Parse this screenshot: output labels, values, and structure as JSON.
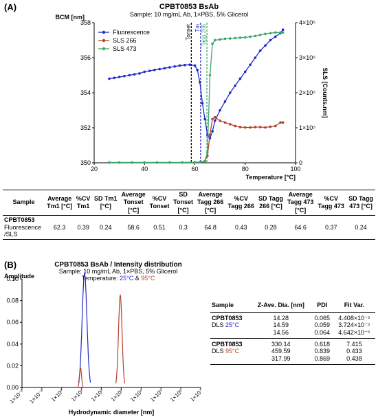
{
  "panels": {
    "a": "(A)",
    "b": "(B)"
  },
  "chart_data": [
    {
      "type": "line",
      "title": "CPBT0853 BsAb",
      "subtitle": "Sample: 10 mg/mL Ab, 1×PBS, 5% Glicerol",
      "xlabel": "Temperature [°C]",
      "ylabel_left": "BCM [nm]",
      "ylabel_right": "SLS [Counts.nm]",
      "xlim": [
        20,
        100
      ],
      "ylim_left": [
        350,
        358
      ],
      "ylim_right": [
        0,
        400000
      ],
      "x_ticks": [
        20,
        40,
        60,
        80,
        100
      ],
      "y_ticks_left": [
        350,
        352,
        354,
        356,
        358
      ],
      "y_ticks_right": [
        {
          "value": 0,
          "label": "0"
        },
        {
          "value": 100000,
          "label": "1×10⁵"
        },
        {
          "value": 200000,
          "label": "2×10⁵"
        },
        {
          "value": 300000,
          "label": "3×10⁵"
        },
        {
          "value": 400000,
          "label": "4×10⁵"
        }
      ],
      "legend_position": "top-left",
      "series": [
        {
          "name": "Fluorescence",
          "axis": "left",
          "color": "#1f28c8",
          "x": [
            26,
            28,
            30,
            32,
            34,
            36,
            38,
            40,
            42,
            44,
            46,
            48,
            50,
            52,
            54,
            56,
            58,
            60,
            61,
            62,
            63,
            64,
            65,
            66,
            67,
            68,
            70,
            72,
            74,
            76,
            78,
            80,
            82,
            84,
            86,
            88,
            90,
            92,
            94,
            95
          ],
          "y": [
            354.8,
            354.85,
            354.9,
            354.95,
            355.0,
            355.05,
            355.1,
            355.2,
            355.25,
            355.3,
            355.35,
            355.4,
            355.45,
            355.5,
            355.55,
            355.58,
            355.6,
            355.55,
            355.3,
            354.6,
            353.4,
            352.5,
            351.6,
            351.4,
            351.8,
            352.4,
            353.0,
            353.5,
            354.0,
            354.4,
            354.8,
            355.2,
            355.6,
            356.0,
            356.4,
            356.7,
            357.0,
            357.2,
            357.4,
            357.6
          ]
        },
        {
          "name": "SLS 266",
          "axis": "right",
          "color": "#b5402a",
          "x": [
            26,
            30,
            35,
            40,
            45,
            50,
            55,
            60,
            62,
            64,
            65,
            66,
            67,
            68,
            70,
            72,
            74,
            76,
            78,
            80,
            82,
            84,
            86,
            88,
            90,
            92,
            94,
            95
          ],
          "y": [
            1000,
            1000,
            1000,
            1000,
            1000,
            1000,
            1000,
            1500,
            2000,
            5000,
            20000,
            80000,
            125000,
            130000,
            120000,
            115000,
            110000,
            105000,
            102000,
            101000,
            101000,
            102000,
            102000,
            101000,
            103000,
            105000,
            115000,
            115000
          ]
        },
        {
          "name": "SLS 473",
          "axis": "right",
          "color": "#3aa86a",
          "x": [
            26,
            30,
            35,
            40,
            45,
            50,
            55,
            60,
            62,
            64,
            65,
            66,
            67,
            68,
            70,
            72,
            74,
            76,
            78,
            80,
            82,
            84,
            86,
            88,
            90,
            92,
            94,
            95
          ],
          "y": [
            1000,
            1000,
            1000,
            1000,
            1000,
            1000,
            1000,
            1500,
            2000,
            4000,
            30000,
            250000,
            340000,
            350000,
            352000,
            354000,
            355000,
            356000,
            357000,
            358000,
            360000,
            362000,
            365000,
            368000,
            370000,
            372000,
            372000,
            372000
          ]
        }
      ],
      "vlines": [
        {
          "label": "Tonset",
          "x": 58.6,
          "color": "#000000"
        },
        {
          "label": "Tm",
          "x": 62.3,
          "color": "#1f28c8"
        },
        {
          "label": "Tagg 266",
          "x": 64.8,
          "color": "#3aa86a"
        }
      ]
    },
    {
      "type": "line",
      "title": "CPBT0853 BsAb / Intensity distribution",
      "subtitle": "Sample: 10 mg/mL Ab, 1×PBS, 5% Glicerol",
      "temp_label": "Temperature: ",
      "temp_25": "25°C",
      "temp_amp": " & ",
      "temp_95": "95°C",
      "xlabel": "Hydrodynamic diameter [nm]",
      "ylabel": "Amplitude",
      "x_scale": "log",
      "xlim_exp": [
        -2,
        7
      ],
      "ylim": [
        0,
        0.1
      ],
      "x_ticks": [
        "1×10⁻²",
        "1×10⁻¹",
        "1×10⁰",
        "1×10¹",
        "1×10²",
        "1×10³",
        "1×10⁴",
        "1×10⁵",
        "1×10⁶",
        "1×10⁷"
      ],
      "y_ticks": [
        "0.00",
        "0.02",
        "0.04",
        "0.06",
        "0.08",
        "0.10"
      ],
      "series": [
        {
          "name": "25°C",
          "color": "#1f28c8",
          "peaks": [
            {
              "center_log": 1.15,
              "width_log": 0.12,
              "amplitude": 0.105
            }
          ]
        },
        {
          "name": "95°C",
          "color": "#b5402a",
          "peaks": [
            {
              "center_log": 0.95,
              "width_log": 0.05,
              "amplitude": 0.018
            },
            {
              "center_log": 2.95,
              "width_log": 0.09,
              "amplitude": 0.085
            }
          ]
        }
      ]
    }
  ],
  "tableA": {
    "headers": [
      [
        "Sample"
      ],
      [
        "Average",
        "Tm1 [°C]"
      ],
      [
        "%CV",
        "Tm1"
      ],
      [
        "SD Tm1",
        "[°C]"
      ],
      [
        "Average",
        "Tonset",
        "[°C]"
      ],
      [
        "%CV",
        "Tonset"
      ],
      [
        "SD",
        "Tonset",
        "[°C]"
      ],
      [
        "Average",
        "Tagg 266",
        "[°C]"
      ],
      [
        "%CV",
        "Tagg 266"
      ],
      [
        "SD Tagg",
        "266 [°C]"
      ],
      [
        "Average",
        "Tagg 473",
        "[°C]"
      ],
      [
        "%CV",
        "Tagg 473"
      ],
      [
        "SD Tagg",
        "473 [°C]"
      ]
    ],
    "row": {
      "sample": "CPBT0853",
      "sample_sub1": "Fluorescence",
      "sample_sub2": "/SLS",
      "values": [
        "62.3",
        "0.39",
        "0.24",
        "58.6",
        "0.51",
        "0.3",
        "64.8",
        "0.43",
        "0.28",
        "64.6",
        "0.37",
        "0.24"
      ]
    }
  },
  "tableB": {
    "headers": [
      "Sample",
      "Z-Ave. Dia. [nm]",
      "PDI",
      "Fit Var."
    ],
    "groups": [
      {
        "name": "CPBT0853",
        "sub_prefix": "DLS ",
        "temp": "25°C",
        "rows": [
          [
            "14.28",
            "0.065",
            "4.408×10⁻⁵"
          ],
          [
            "14.59",
            "0.059",
            "3.724×10⁻⁵"
          ],
          [
            "14.56",
            "0.064",
            "4.642×10⁻⁵"
          ]
        ]
      },
      {
        "name": "CPBT0853",
        "sub_prefix": "DLS ",
        "temp": "95°C",
        "rows": [
          [
            "330.14",
            "0.618",
            "7.415"
          ],
          [
            "459.59",
            "0.839",
            "0.433"
          ],
          [
            "317.99",
            "0.869",
            "0.438"
          ]
        ]
      }
    ]
  }
}
